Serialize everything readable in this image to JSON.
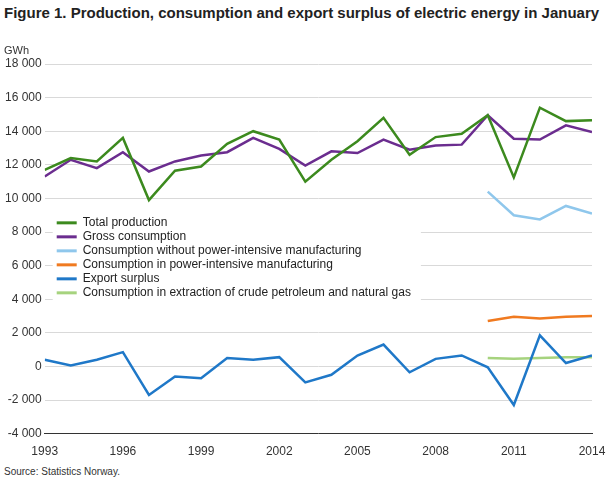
{
  "chart_data": {
    "type": "line",
    "title": "Figure 1. Production, consumption and export surplus of electric energy in January",
    "y_label": "GWh",
    "source": "Source: Statistics Norway.",
    "x": [
      1993,
      1994,
      1995,
      1996,
      1997,
      1998,
      1999,
      2000,
      2001,
      2002,
      2003,
      2004,
      2005,
      2006,
      2007,
      2008,
      2009,
      2010,
      2011,
      2012,
      2013,
      2014
    ],
    "xlim": [
      1993,
      2014
    ],
    "xticks": [
      1993,
      1996,
      1999,
      2002,
      2005,
      2008,
      2011,
      2014
    ],
    "ylim": [
      -4000,
      18000
    ],
    "yticks": [
      {
        "value": -4000,
        "label": "-4 000"
      },
      {
        "value": -2000,
        "label": "-2 000"
      },
      0,
      {
        "value": 2000,
        "label": "2 000"
      },
      {
        "value": 4000,
        "label": "4 000"
      },
      {
        "value": 6000,
        "label": "6 000"
      },
      {
        "value": 8000,
        "label": "8 000"
      },
      {
        "value": 10000,
        "label": "10 000"
      },
      {
        "value": 12000,
        "label": "12 000"
      },
      {
        "value": 14000,
        "label": "14 000"
      },
      {
        "value": 16000,
        "label": "16 000"
      },
      {
        "value": 18000,
        "label": "18 000"
      }
    ],
    "grid": true,
    "legend": "left",
    "series": [
      {
        "name": "Total production",
        "color": "#3c8a1e",
        "values": [
          11700,
          12400,
          12200,
          13600,
          9900,
          11650,
          11900,
          13250,
          14000,
          13500,
          11000,
          12300,
          13400,
          14800,
          12600,
          13650,
          13850,
          14950,
          11250,
          15400,
          14600,
          14650
        ]
      },
      {
        "name": "Gross consumption",
        "color": "#6b2d8f",
        "values": [
          11300,
          12300,
          11800,
          12750,
          11600,
          12200,
          12550,
          12750,
          13600,
          12950,
          11950,
          12800,
          12700,
          13500,
          12900,
          13150,
          13200,
          14950,
          13550,
          13500,
          14350,
          13950
        ]
      },
      {
        "name": "Consumption without power-intensive manufacturing",
        "color": "#8fc7ec",
        "values": [
          null,
          null,
          null,
          null,
          null,
          null,
          null,
          null,
          null,
          null,
          null,
          null,
          null,
          null,
          null,
          null,
          null,
          10400,
          9000,
          8750,
          9550,
          9100
        ]
      },
      {
        "name": "Consumption in power-intensive manufacturing",
        "color": "#f07a20",
        "values": [
          null,
          null,
          null,
          null,
          null,
          null,
          null,
          null,
          null,
          null,
          null,
          null,
          null,
          null,
          null,
          null,
          null,
          2700,
          2950,
          2850,
          2950,
          3000
        ]
      },
      {
        "name": "Export surplus",
        "color": "#1f78c8",
        "values": [
          400,
          50,
          400,
          850,
          -1700,
          -600,
          -700,
          500,
          400,
          550,
          -950,
          -500,
          650,
          1300,
          -350,
          450,
          650,
          -50,
          -2300,
          1850,
          200,
          650
        ]
      },
      {
        "name": "Consumption in extraction of crude petroleum and natural gas",
        "color": "#a6d37e",
        "values": [
          null,
          null,
          null,
          null,
          null,
          null,
          null,
          null,
          null,
          null,
          null,
          null,
          null,
          null,
          null,
          null,
          null,
          500,
          450,
          500,
          550,
          550
        ]
      }
    ]
  }
}
